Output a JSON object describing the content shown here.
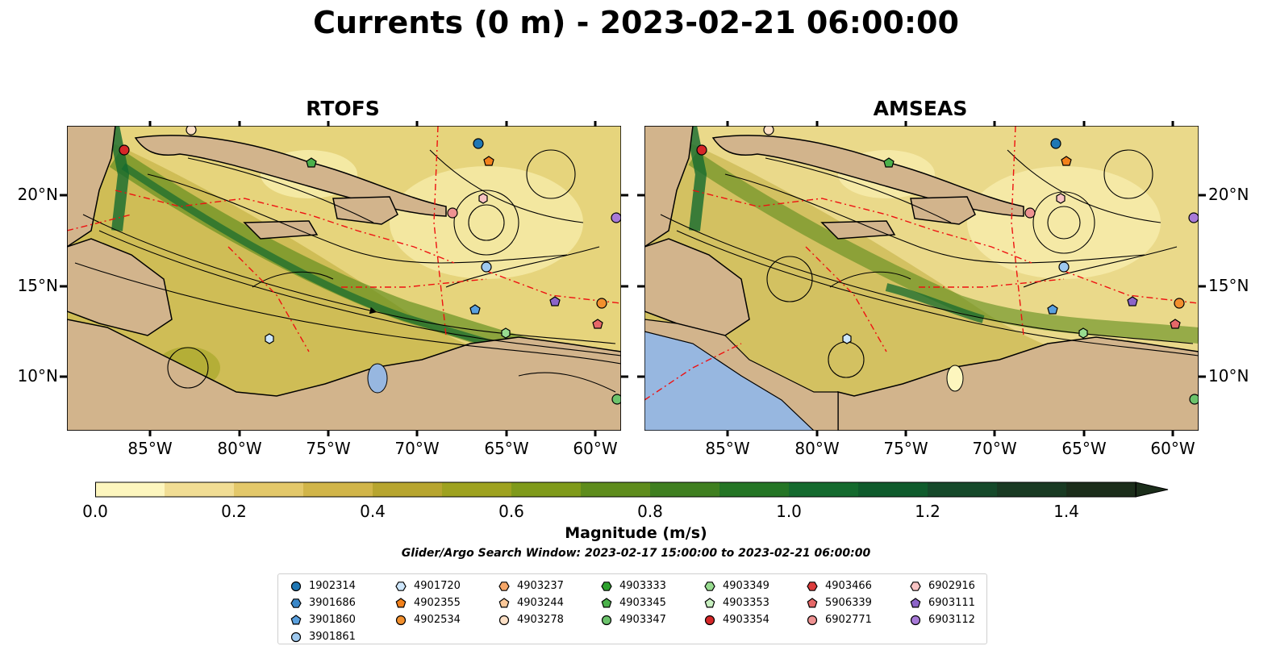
{
  "title": "Currents (0 m) - 2023-02-21 06:00:00",
  "panels": [
    {
      "title": "RTOFS"
    },
    {
      "title": "AMSEAS"
    }
  ],
  "axes": {
    "lon_ticks": [
      "85°W",
      "80°W",
      "75°W",
      "70°W",
      "65°W",
      "60°W"
    ],
    "lat_ticks": [
      "20°N",
      "15°N",
      "10°N"
    ]
  },
  "colorbar": {
    "label": "Magnitude (m/s)",
    "ticks": [
      "0.0",
      "0.2",
      "0.4",
      "0.6",
      "0.8",
      "1.0",
      "1.2",
      "1.4"
    ],
    "range": [
      0,
      1.5
    ],
    "colors": [
      "#fdf6be",
      "#f1dd94",
      "#e3c86a",
      "#d1b549",
      "#b7a52f",
      "#9ea21f",
      "#7f9a1a",
      "#5e8c1c",
      "#3f7f20",
      "#247525",
      "#146a2e",
      "#0f5b2c",
      "#15492a",
      "#193a23",
      "#1b2d1a"
    ]
  },
  "search_window": "Glider/Argo Search Window: 2023-02-17 15:00:00 to 2023-02-21 06:00:00",
  "legend": [
    {
      "id": "1902314",
      "marker": "circle",
      "color": "#1f77b4"
    },
    {
      "id": "3901686",
      "marker": "hexagon",
      "color": "#3a87c8"
    },
    {
      "id": "3901860",
      "marker": "pentagon",
      "color": "#5aa0de"
    },
    {
      "id": "3901861",
      "marker": "circle",
      "color": "#9ec9ef"
    },
    {
      "id": "4901720",
      "marker": "hexagon",
      "color": "#cde6fb"
    },
    {
      "id": "4902355",
      "marker": "pentagon",
      "color": "#f2811c"
    },
    {
      "id": "4902534",
      "marker": "circle",
      "color": "#f2902e"
    },
    {
      "id": "4903237",
      "marker": "hexagon",
      "color": "#f7a768"
    },
    {
      "id": "4903244",
      "marker": "pentagon",
      "color": "#fbc899"
    },
    {
      "id": "4903278",
      "marker": "circle",
      "color": "#fde0c6"
    },
    {
      "id": "4903333",
      "marker": "hexagon",
      "color": "#2ca02c"
    },
    {
      "id": "4903345",
      "marker": "pentagon",
      "color": "#4bb14b"
    },
    {
      "id": "4903347",
      "marker": "circle",
      "color": "#6cc36c"
    },
    {
      "id": "4903349",
      "marker": "hexagon",
      "color": "#98dc90"
    },
    {
      "id": "4903353",
      "marker": "pentagon",
      "color": "#c8f0c0"
    },
    {
      "id": "4903354",
      "marker": "circle",
      "color": "#d62728"
    },
    {
      "id": "4903466",
      "marker": "hexagon",
      "color": "#dc3c3c"
    },
    {
      "id": "5906339",
      "marker": "pentagon",
      "color": "#e66868"
    },
    {
      "id": "6902771",
      "marker": "circle",
      "color": "#ee9292"
    },
    {
      "id": "6902916",
      "marker": "hexagon",
      "color": "#f9c4c4"
    },
    {
      "id": "6903111",
      "marker": "pentagon",
      "color": "#8c64c8"
    },
    {
      "id": "6903112",
      "marker": "circle",
      "color": "#a87ad8"
    }
  ],
  "colors": {
    "land": "#d2b48c",
    "lake": "#97b7e0",
    "eez_line": "#ee1111",
    "streamline": "#000000"
  }
}
